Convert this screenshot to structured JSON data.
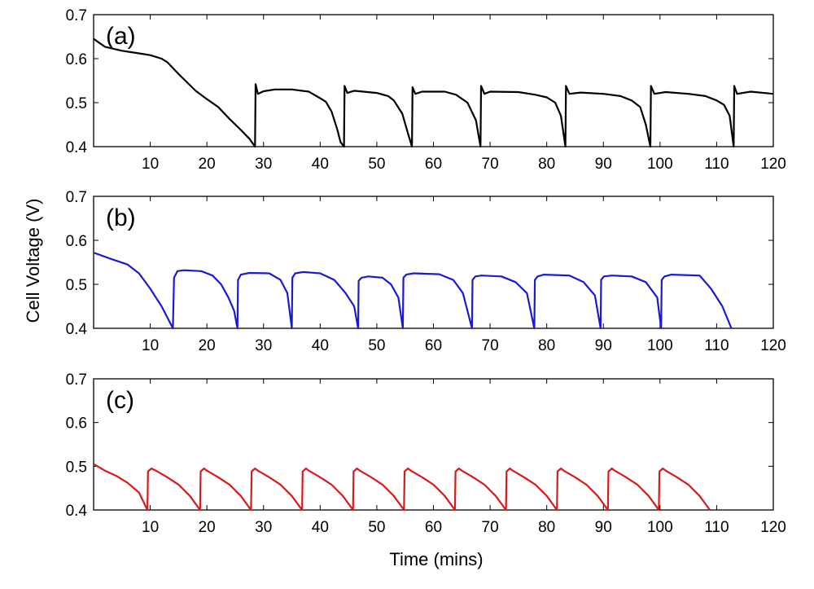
{
  "chart_data": {
    "type": "line",
    "xlabel": "Time (mins)",
    "ylabel": "Cell Voltage (V)",
    "grid": false,
    "panels": [
      {
        "label": "(a)",
        "color": "#000000",
        "xlim": [
          0,
          120
        ],
        "ylim": [
          0.4,
          0.7
        ],
        "xticks": [
          10,
          20,
          30,
          40,
          50,
          60,
          70,
          80,
          90,
          100,
          110,
          120
        ],
        "yticks": [
          0.4,
          0.5,
          0.6,
          0.7
        ],
        "x": [
          0,
          2,
          5,
          8,
          10,
          12,
          13,
          15,
          18,
          20,
          22,
          24,
          26,
          27.5,
          28.5,
          28.6,
          29,
          30,
          32,
          35,
          38,
          40,
          41,
          42,
          43,
          43.6,
          44.2,
          44.3,
          44.8,
          46,
          50,
          52,
          53,
          54.5,
          55.5,
          56.2,
          56.3,
          56.8,
          58,
          62,
          64,
          66,
          67.5,
          68.3,
          68.4,
          69,
          70,
          75,
          78,
          80,
          81.5,
          82.5,
          83.3,
          83.4,
          84,
          86,
          90,
          93,
          95,
          96.5,
          97.5,
          98.3,
          98.4,
          99,
          101,
          105,
          108,
          110,
          111.3,
          112.3,
          113,
          113.1,
          113.6,
          116,
          120
        ],
        "y": [
          0.645,
          0.627,
          0.618,
          0.612,
          0.608,
          0.6,
          0.592,
          0.565,
          0.527,
          0.508,
          0.49,
          0.463,
          0.438,
          0.418,
          0.4,
          0.542,
          0.52,
          0.526,
          0.53,
          0.53,
          0.525,
          0.51,
          0.502,
          0.48,
          0.44,
          0.41,
          0.4,
          0.538,
          0.522,
          0.527,
          0.522,
          0.515,
          0.505,
          0.475,
          0.43,
          0.4,
          0.535,
          0.52,
          0.525,
          0.525,
          0.518,
          0.5,
          0.46,
          0.4,
          0.538,
          0.52,
          0.525,
          0.524,
          0.518,
          0.512,
          0.5,
          0.47,
          0.4,
          0.538,
          0.52,
          0.523,
          0.52,
          0.515,
          0.505,
          0.49,
          0.45,
          0.4,
          0.538,
          0.52,
          0.524,
          0.52,
          0.515,
          0.505,
          0.495,
          0.47,
          0.4,
          0.538,
          0.52,
          0.525,
          0.52
        ]
      },
      {
        "label": "(b)",
        "color": "#1a1ad6",
        "xlim": [
          0,
          120
        ],
        "ylim": [
          0.4,
          0.7
        ],
        "xticks": [
          10,
          20,
          30,
          40,
          50,
          60,
          70,
          80,
          90,
          100,
          110,
          120
        ],
        "yticks": [
          0.4,
          0.5,
          0.6,
          0.7
        ],
        "x": [
          0,
          3,
          6,
          8,
          10,
          11,
          12,
          13,
          13.8,
          14,
          14.2,
          14.8,
          16,
          19,
          21,
          22.5,
          23.8,
          24.8,
          25.4,
          25.5,
          26,
          27.5,
          31,
          33,
          34.2,
          35,
          35.1,
          35.6,
          37,
          40,
          42.5,
          44.5,
          46,
          46.7,
          46.8,
          47.3,
          48.5,
          51,
          52.5,
          53.8,
          54.6,
          54.7,
          55.2,
          56.5,
          61,
          63.5,
          65.2,
          66.8,
          66.9,
          67.4,
          68.5,
          72,
          74.5,
          76.5,
          77.8,
          77.9,
          78.4,
          79.5,
          84,
          86.5,
          88.5,
          89.5,
          89.6,
          90.1,
          91.5,
          95,
          97.5,
          99.5,
          100.2,
          100.3,
          100.8,
          102,
          107,
          109,
          111,
          112.6
        ],
        "y": [
          0.572,
          0.558,
          0.545,
          0.525,
          0.49,
          0.47,
          0.45,
          0.425,
          0.405,
          0.4,
          0.515,
          0.53,
          0.532,
          0.53,
          0.52,
          0.5,
          0.47,
          0.44,
          0.4,
          0.51,
          0.522,
          0.526,
          0.525,
          0.51,
          0.48,
          0.4,
          0.515,
          0.525,
          0.528,
          0.525,
          0.51,
          0.48,
          0.45,
          0.4,
          0.508,
          0.515,
          0.518,
          0.515,
          0.5,
          0.47,
          0.4,
          0.515,
          0.522,
          0.525,
          0.523,
          0.51,
          0.48,
          0.4,
          0.51,
          0.518,
          0.52,
          0.518,
          0.505,
          0.48,
          0.4,
          0.51,
          0.518,
          0.522,
          0.52,
          0.505,
          0.475,
          0.4,
          0.51,
          0.518,
          0.52,
          0.518,
          0.505,
          0.47,
          0.4,
          0.51,
          0.518,
          0.522,
          0.52,
          0.49,
          0.45,
          0.4
        ]
      },
      {
        "label": "(c)",
        "color": "#d91a1a",
        "xlim": [
          0,
          120
        ],
        "ylim": [
          0.4,
          0.7
        ],
        "xticks": [
          10,
          20,
          30,
          40,
          50,
          60,
          70,
          80,
          90,
          100,
          110,
          120
        ],
        "yticks": [
          0.4,
          0.5,
          0.6,
          0.7
        ],
        "x": [
          0,
          2,
          4,
          6,
          8,
          9.5,
          9.6,
          10.2,
          11,
          13,
          15,
          17,
          18.8,
          18.9,
          19.5,
          20,
          22,
          24,
          26,
          27.8,
          27.9,
          28.5,
          29,
          31,
          33,
          35,
          36.8,
          36.9,
          37.5,
          38,
          40,
          42,
          44,
          45.8,
          45.9,
          46.5,
          47,
          49,
          51,
          53,
          54.8,
          54.9,
          55.5,
          56,
          58,
          60,
          62,
          63.8,
          63.9,
          64.5,
          65,
          67,
          69,
          71,
          72.8,
          72.9,
          73.5,
          74,
          76,
          78,
          80,
          81.8,
          81.9,
          82.5,
          83,
          85,
          87,
          89,
          90.8,
          90.9,
          91.5,
          92,
          94,
          96,
          98,
          99.8,
          99.9,
          100.5,
          101,
          103,
          105,
          107,
          108.8
        ],
        "y": [
          0.505,
          0.49,
          0.478,
          0.462,
          0.44,
          0.4,
          0.488,
          0.495,
          0.49,
          0.475,
          0.458,
          0.432,
          0.4,
          0.488,
          0.495,
          0.49,
          0.475,
          0.458,
          0.432,
          0.4,
          0.488,
          0.495,
          0.49,
          0.475,
          0.458,
          0.432,
          0.4,
          0.488,
          0.495,
          0.49,
          0.475,
          0.458,
          0.432,
          0.4,
          0.488,
          0.495,
          0.49,
          0.475,
          0.458,
          0.432,
          0.4,
          0.488,
          0.495,
          0.49,
          0.475,
          0.458,
          0.432,
          0.4,
          0.488,
          0.495,
          0.49,
          0.475,
          0.458,
          0.432,
          0.4,
          0.488,
          0.495,
          0.49,
          0.475,
          0.458,
          0.432,
          0.4,
          0.488,
          0.495,
          0.49,
          0.475,
          0.458,
          0.432,
          0.4,
          0.488,
          0.495,
          0.49,
          0.475,
          0.458,
          0.432,
          0.4,
          0.488,
          0.495,
          0.49,
          0.475,
          0.458,
          0.432,
          0.4
        ]
      }
    ]
  }
}
